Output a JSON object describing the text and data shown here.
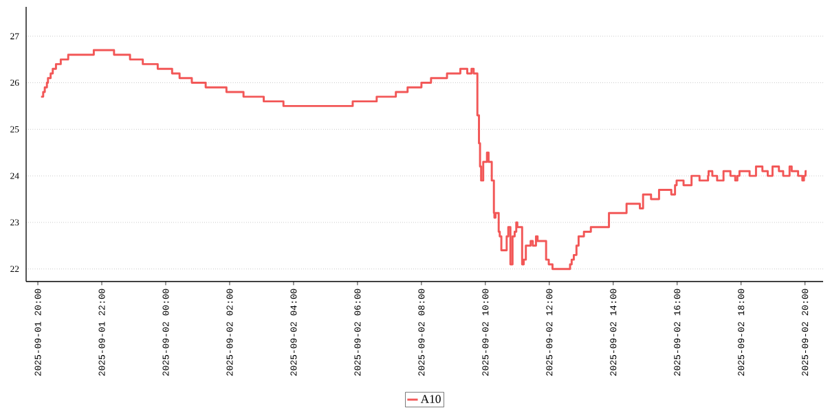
{
  "chart_data": {
    "type": "step",
    "xlim": [
      "2025-09-01T19:38",
      "2025-09-02T20:34"
    ],
    "ylim": [
      21.73,
      27.63
    ],
    "xticks": [
      {
        "value": "2025-09-01T20:00",
        "label": "2025-09-01 20:00"
      },
      {
        "value": "2025-09-01T22:00",
        "label": "2025-09-01 22:00"
      },
      {
        "value": "2025-09-02T00:00",
        "label": "2025-09-02 00:00"
      },
      {
        "value": "2025-09-02T02:00",
        "label": "2025-09-02 02:00"
      },
      {
        "value": "2025-09-02T04:00",
        "label": "2025-09-02 04:00"
      },
      {
        "value": "2025-09-02T06:00",
        "label": "2025-09-02 06:00"
      },
      {
        "value": "2025-09-02T08:00",
        "label": "2025-09-02 08:00"
      },
      {
        "value": "2025-09-02T10:00",
        "label": "2025-09-02 10:00"
      },
      {
        "value": "2025-09-02T12:00",
        "label": "2025-09-02 12:00"
      },
      {
        "value": "2025-09-02T14:00",
        "label": "2025-09-02 14:00"
      },
      {
        "value": "2025-09-02T16:00",
        "label": "2025-09-02 16:00"
      },
      {
        "value": "2025-09-02T18:00",
        "label": "2025-09-02 18:00"
      },
      {
        "value": "2025-09-02T20:00",
        "label": "2025-09-02 20:00"
      }
    ],
    "yticks": [
      22,
      23,
      24,
      25,
      26,
      27
    ],
    "grid": "y",
    "legend": "bottom",
    "series": [
      {
        "name": "A10",
        "color": "#f25757",
        "x": [
          "2025-09-01T20:06",
          "2025-09-01T20:10",
          "2025-09-01T20:13",
          "2025-09-01T20:17",
          "2025-09-01T20:19",
          "2025-09-01T20:24",
          "2025-09-01T20:28",
          "2025-09-01T20:34",
          "2025-09-01T20:43",
          "2025-09-01T20:57",
          "2025-09-01T21:45",
          "2025-09-01T22:23",
          "2025-09-01T22:53",
          "2025-09-01T23:17",
          "2025-09-01T23:45",
          "2025-09-02T00:12",
          "2025-09-02T00:26",
          "2025-09-02T00:49",
          "2025-09-02T01:15",
          "2025-09-02T01:54",
          "2025-09-02T02:26",
          "2025-09-02T03:04",
          "2025-09-02T03:41",
          "2025-09-02T05:51",
          "2025-09-02T06:36",
          "2025-09-02T07:12",
          "2025-09-02T07:34",
          "2025-09-02T08:00",
          "2025-09-02T08:18",
          "2025-09-02T08:48",
          "2025-09-02T09:13",
          "2025-09-02T09:26",
          "2025-09-02T09:34",
          "2025-09-02T09:38",
          "2025-09-02T09:45",
          "2025-09-02T09:48",
          "2025-09-02T09:50",
          "2025-09-02T09:52",
          "2025-09-02T09:56",
          "2025-09-02T10:03",
          "2025-09-02T10:06",
          "2025-09-02T10:12",
          "2025-09-02T10:16",
          "2025-09-02T10:17",
          "2025-09-02T10:19",
          "2025-09-02T10:25",
          "2025-09-02T10:27",
          "2025-09-02T10:30",
          "2025-09-02T10:40",
          "2025-09-02T10:43",
          "2025-09-02T10:47",
          "2025-09-02T10:51",
          "2025-09-02T10:55",
          "2025-09-02T10:58",
          "2025-09-02T11:00",
          "2025-09-02T11:09",
          "2025-09-02T11:12",
          "2025-09-02T11:16",
          "2025-09-02T11:25",
          "2025-09-02T11:29",
          "2025-09-02T11:35",
          "2025-09-02T11:38",
          "2025-09-02T11:54",
          "2025-09-02T11:59",
          "2025-09-02T12:06",
          "2025-09-02T12:39",
          "2025-09-02T12:42",
          "2025-09-02T12:46",
          "2025-09-02T12:51",
          "2025-09-02T12:55",
          "2025-09-02T13:05",
          "2025-09-02T13:18",
          "2025-09-02T13:52",
          "2025-09-02T14:25",
          "2025-09-02T14:50",
          "2025-09-02T14:56",
          "2025-09-02T15:11",
          "2025-09-02T15:26",
          "2025-09-02T15:49",
          "2025-09-02T15:56",
          "2025-09-02T15:59",
          "2025-09-02T16:12",
          "2025-09-02T16:27",
          "2025-09-02T16:42",
          "2025-09-02T16:58",
          "2025-09-02T16:59",
          "2025-09-02T17:06",
          "2025-09-02T17:15",
          "2025-09-02T17:27",
          "2025-09-02T17:40",
          "2025-09-02T17:49",
          "2025-09-02T17:53",
          "2025-09-02T17:57",
          "2025-09-02T18:16",
          "2025-09-02T18:28",
          "2025-09-02T18:40",
          "2025-09-02T18:50",
          "2025-09-02T18:59",
          "2025-09-02T19:11",
          "2025-09-02T19:19",
          "2025-09-02T19:31",
          "2025-09-02T19:35",
          "2025-09-02T19:47",
          "2025-09-02T19:55",
          "2025-09-02T19:58",
          "2025-09-02T20:01",
          "2025-09-02T20:03"
        ],
        "values": [
          25.7,
          25.8,
          25.9,
          26.0,
          26.1,
          26.2,
          26.3,
          26.4,
          26.5,
          26.6,
          26.7,
          26.6,
          26.5,
          26.4,
          26.3,
          26.2,
          26.1,
          26.0,
          25.9,
          25.8,
          25.7,
          25.6,
          25.5,
          25.6,
          25.7,
          25.8,
          25.9,
          26.0,
          26.1,
          26.2,
          26.3,
          26.2,
          26.3,
          26.2,
          25.3,
          24.7,
          24.2,
          23.9,
          24.3,
          24.5,
          24.3,
          23.9,
          23.2,
          23.1,
          23.2,
          22.8,
          22.7,
          22.4,
          22.7,
          22.9,
          22.1,
          22.7,
          22.8,
          23.0,
          22.9,
          22.1,
          22.2,
          22.5,
          22.6,
          22.5,
          22.7,
          22.6,
          22.2,
          22.1,
          22.0,
          22.1,
          22.2,
          22.3,
          22.5,
          22.7,
          22.8,
          22.9,
          23.2,
          23.4,
          23.3,
          23.6,
          23.5,
          23.7,
          23.6,
          23.8,
          23.9,
          23.8,
          24.0,
          23.9,
          24.0,
          24.1,
          24.0,
          23.9,
          24.1,
          24.0,
          23.9,
          24.0,
          24.1,
          24.0,
          24.2,
          24.1,
          24.0,
          24.2,
          24.1,
          24.0,
          24.2,
          24.1,
          24.0,
          23.9,
          24.0,
          24.1,
          24.1
        ]
      }
    ]
  }
}
